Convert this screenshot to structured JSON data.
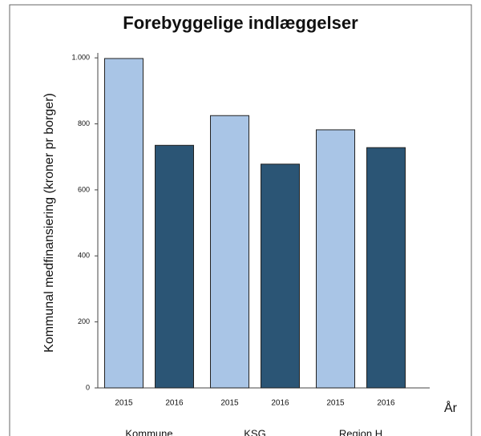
{
  "chart_data": {
    "type": "bar",
    "title": "Forebyggelige indlæggelser",
    "y_label": "Kommunal medfinansiering (kroner pr borger)",
    "x_label": "År",
    "categories": [
      "Kommune",
      "KSG",
      "Region H"
    ],
    "series": [
      {
        "name": "2015",
        "color": "#a9c5e6",
        "values": [
          998,
          825,
          782
        ]
      },
      {
        "name": "2016",
        "color": "#2b5575",
        "values": [
          735,
          678,
          728
        ]
      }
    ],
    "ylim": [
      0,
      1015
    ],
    "yticks": [
      0,
      200,
      400,
      600,
      800,
      {
        "value": 1000,
        "label": "1.000"
      }
    ],
    "grid": false
  }
}
